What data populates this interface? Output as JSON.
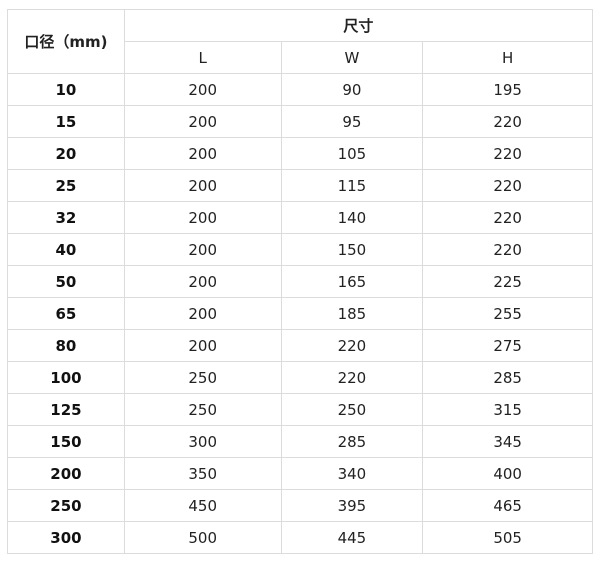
{
  "header": {
    "diameter": "口径（mm)",
    "dimensions": "尺寸",
    "L": "L",
    "W": "W",
    "H": "H"
  },
  "rows": [
    [
      "10",
      "200",
      "90",
      "195"
    ],
    [
      "15",
      "200",
      "95",
      "220"
    ],
    [
      "20",
      "200",
      "105",
      "220"
    ],
    [
      "25",
      "200",
      "115",
      "220"
    ],
    [
      "32",
      "200",
      "140",
      "220"
    ],
    [
      "40",
      "200",
      "150",
      "220"
    ],
    [
      "50",
      "200",
      "165",
      "225"
    ],
    [
      "65",
      "200",
      "185",
      "255"
    ],
    [
      "80",
      "200",
      "220",
      "275"
    ],
    [
      "100",
      "250",
      "220",
      "285"
    ],
    [
      "125",
      "250",
      "250",
      "315"
    ],
    [
      "150",
      "300",
      "285",
      "345"
    ],
    [
      "200",
      "350",
      "340",
      "400"
    ],
    [
      "250",
      "450",
      "395",
      "465"
    ],
    [
      "300",
      "500",
      "445",
      "505"
    ]
  ]
}
